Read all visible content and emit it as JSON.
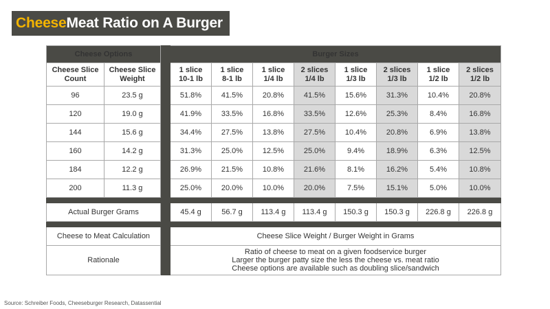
{
  "title": {
    "highlight": "Cheese",
    "rest": "Meat Ratio on A Burger"
  },
  "headers": {
    "cheese_options": "Cheese Options",
    "burger_sizes": "Burger Sizes"
  },
  "sub_headers": [
    {
      "l1": "Cheese Slice",
      "l2": "Count"
    },
    {
      "l1": "Cheese Slice",
      "l2": "Weight"
    },
    {
      "l1": "1 slice",
      "l2": "10-1 lb"
    },
    {
      "l1": "1 slice",
      "l2": "8-1 lb"
    },
    {
      "l1": "1 slice",
      "l2": "1/4 lb"
    },
    {
      "l1": "2 slices",
      "l2": "1/4 lb"
    },
    {
      "l1": "1 slice",
      "l2": "1/3 lb"
    },
    {
      "l1": "2 slices",
      "l2": "1/3 lb"
    },
    {
      "l1": "1 slice",
      "l2": "1/2 lb"
    },
    {
      "l1": "2 slices",
      "l2": "1/2 lb"
    }
  ],
  "rows": [
    {
      "count": "96",
      "weight": "23.5 g",
      "ratios": [
        "51.8%",
        "41.5%",
        "20.8%",
        "41.5%",
        "15.6%",
        "31.3%",
        "10.4%",
        "20.8%"
      ]
    },
    {
      "count": "120",
      "weight": "19.0 g",
      "ratios": [
        "41.9%",
        "33.5%",
        "16.8%",
        "33.5%",
        "12.6%",
        "25.3%",
        "8.4%",
        "16.8%"
      ]
    },
    {
      "count": "144",
      "weight": "15.6 g",
      "ratios": [
        "34.4%",
        "27.5%",
        "13.8%",
        "27.5%",
        "10.4%",
        "20.8%",
        "6.9%",
        "13.8%"
      ]
    },
    {
      "count": "160",
      "weight": "14.2 g",
      "ratios": [
        "31.3%",
        "25.0%",
        "12.5%",
        "25.0%",
        "9.4%",
        "18.9%",
        "6.3%",
        "12.5%"
      ]
    },
    {
      "count": "184",
      "weight": "12.2 g",
      "ratios": [
        "26.9%",
        "21.5%",
        "10.8%",
        "21.6%",
        "8.1%",
        "16.2%",
        "5.4%",
        "10.8%"
      ]
    },
    {
      "count": "200",
      "weight": "11.3 g",
      "ratios": [
        "25.0%",
        "20.0%",
        "10.0%",
        "20.0%",
        "7.5%",
        "15.1%",
        "5.0%",
        "10.0%"
      ]
    }
  ],
  "actual_grams": {
    "label": "Actual Burger Grams",
    "values": [
      "45.4 g",
      "56.7 g",
      "113.4 g",
      "113.4 g",
      "150.3 g",
      "150.3 g",
      "226.8 g",
      "226.8 g"
    ]
  },
  "calculation": {
    "label": "Cheese to Meat Calculation",
    "value": "Cheese Slice Weight / Burger Weight in Grams"
  },
  "rationale": {
    "label": "Rationale",
    "lines": [
      "Ratio of cheese to meat on a given foodservice burger",
      "Larger the burger patty size the less the cheese vs. meat ratio",
      "Cheese options are available such as doubling slice/sandwich"
    ]
  },
  "source": "Source: Schreiber Foods, Cheeseburger Research, Datassential",
  "colors": {
    "header_bg": "#4a4a45",
    "accent": "#f4b400",
    "shaded_col": "#d9d9d9"
  }
}
